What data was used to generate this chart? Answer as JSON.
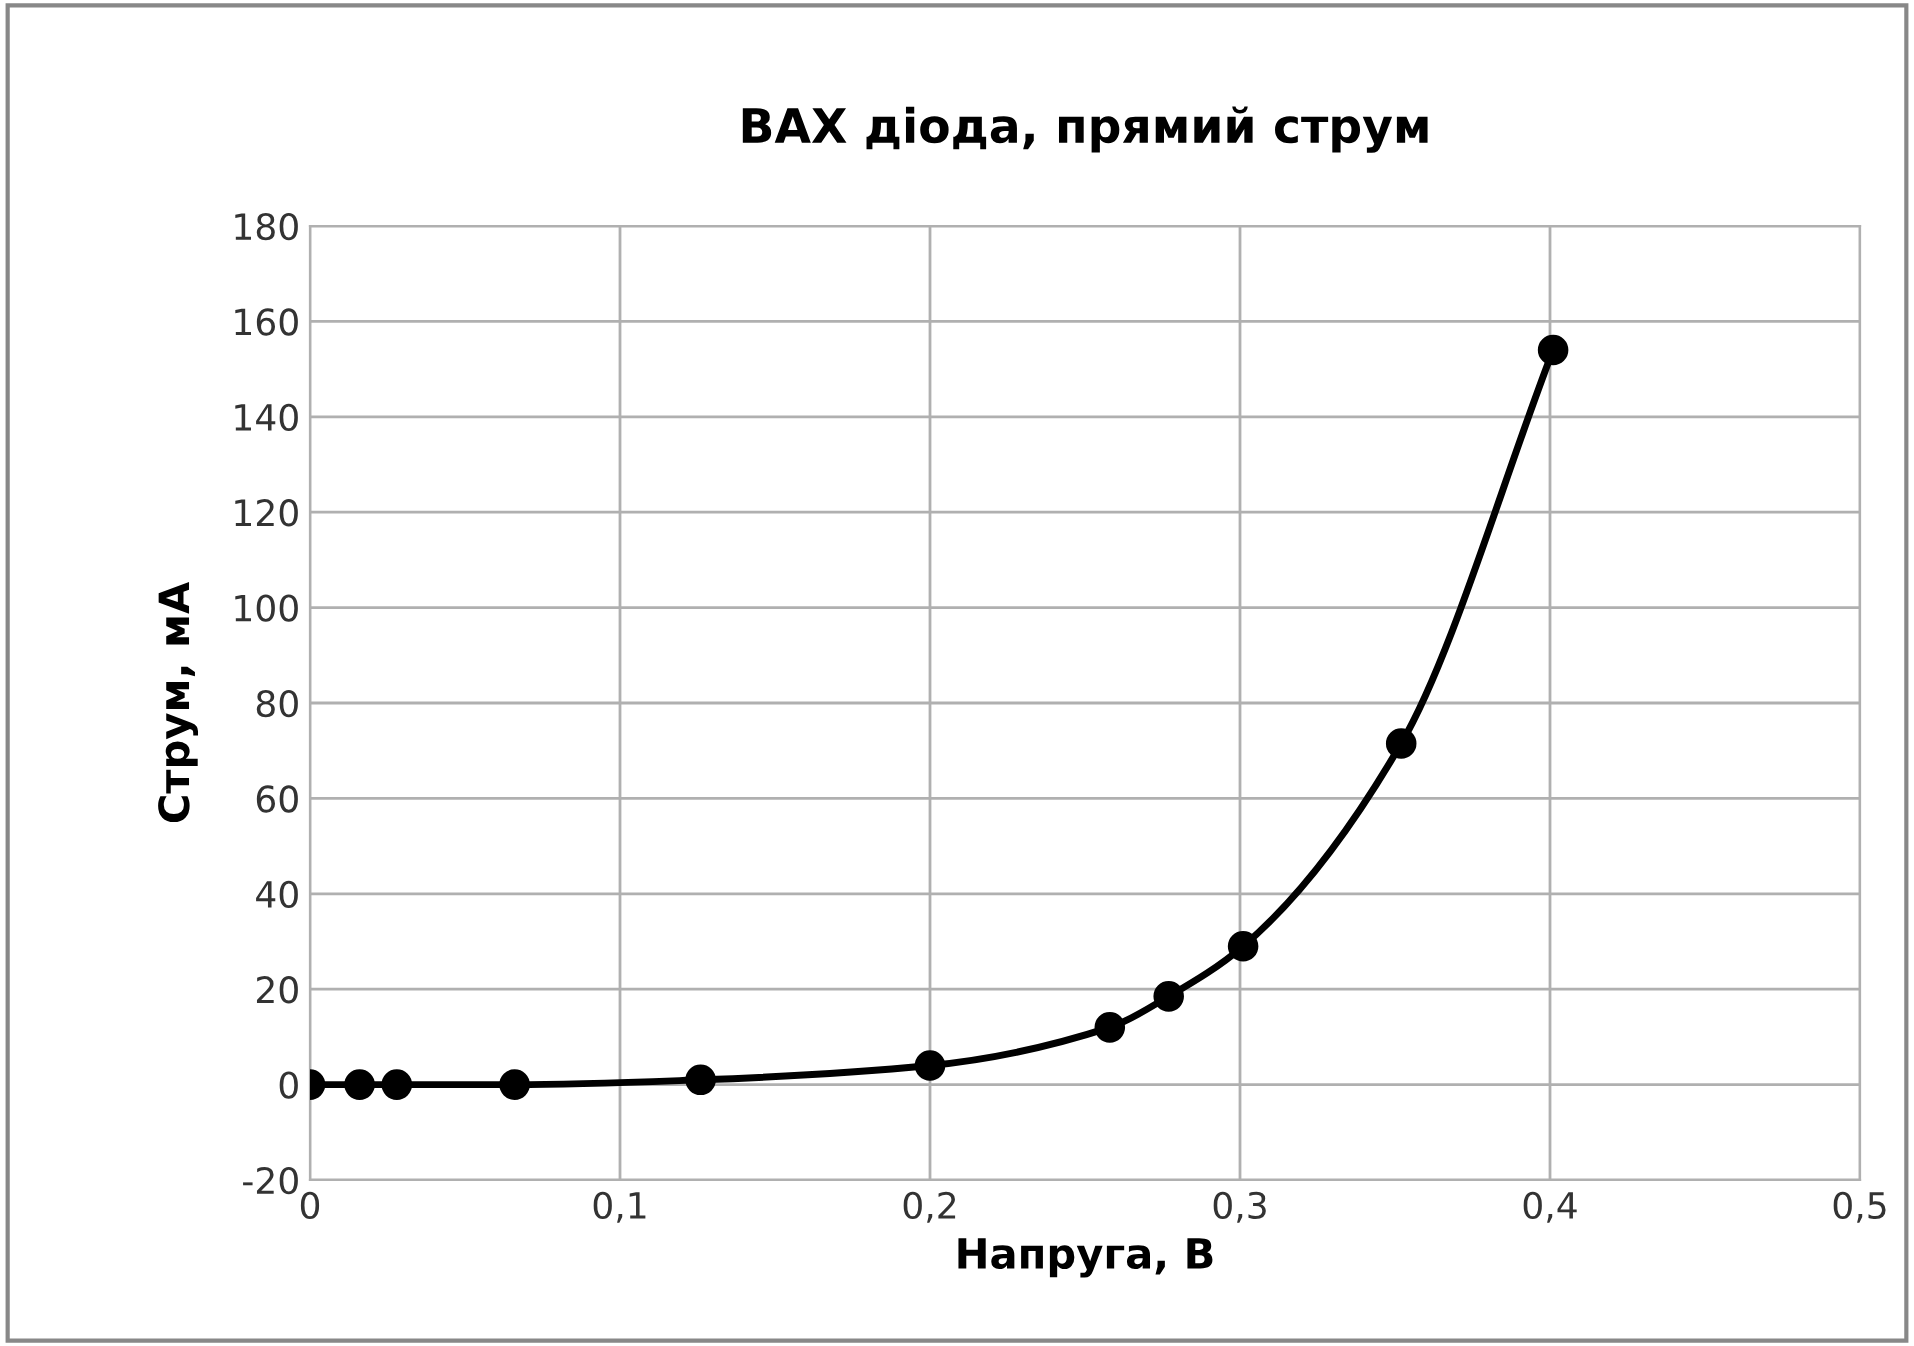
{
  "chart_data": {
    "type": "line",
    "title": "ВАХ діода, прямий струм",
    "xlabel": "Напруга, В",
    "ylabel": "Струм, мА",
    "x": [
      0,
      0.016,
      0.028,
      0.066,
      0.126,
      0.2,
      0.258,
      0.277,
      0.301,
      0.352,
      0.401
    ],
    "series": [
      {
        "color": "#000000",
        "values": [
          0,
          0,
          0,
          0,
          1,
          4,
          12,
          18.5,
          29,
          71.5,
          154
        ]
      }
    ],
    "xlim": [
      0,
      0.5
    ],
    "ylim": [
      -20,
      180
    ],
    "xticks": [
      0,
      {
        "value": 0.1,
        "label": "0,1"
      },
      {
        "value": 0.2,
        "label": "0,2"
      },
      {
        "value": 0.3,
        "label": "0,3"
      },
      {
        "value": 0.4,
        "label": "0,4"
      },
      {
        "value": 0.5,
        "label": "0,5"
      }
    ],
    "yticks": [
      -20,
      0,
      20,
      40,
      60,
      80,
      100,
      120,
      140,
      160,
      180
    ],
    "grid": true,
    "marker": "circle",
    "line_style": "solid"
  }
}
